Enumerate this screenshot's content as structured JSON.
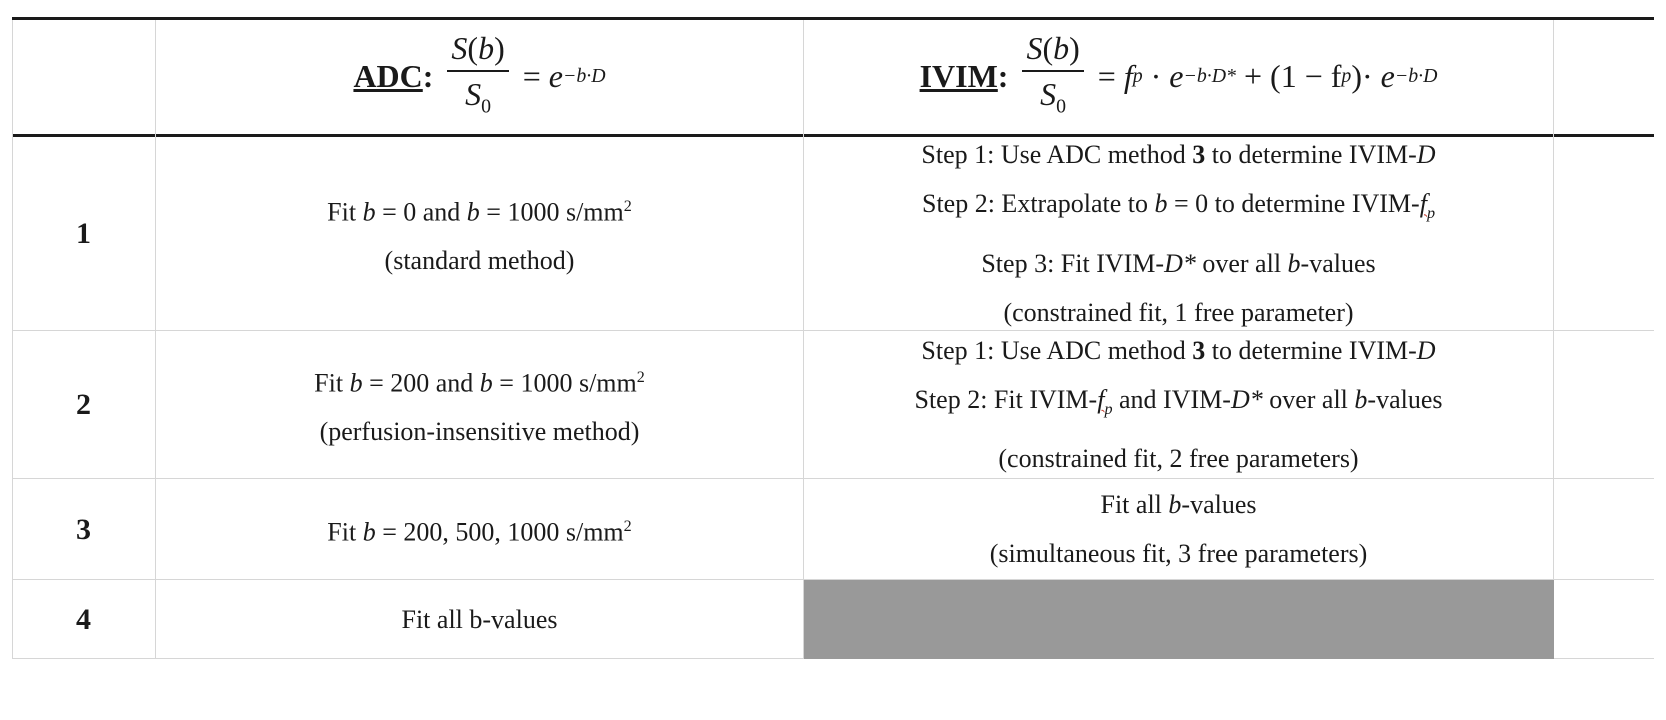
{
  "header": {
    "adc_label": "ADC",
    "ivim_label": "IVIM",
    "colon": ":",
    "frac_num": "S(b)",
    "frac_den_S": "S",
    "frac_den_sub": "0",
    "eq": "=",
    "e": "e",
    "adc_exp": "−b·D",
    "ivim_fp": "f",
    "ivim_fp_sub": "p",
    "dot": "·",
    "ivim_exp1": "−b·D*",
    "plus": "+",
    "ivim_paren": "(1 − f",
    "ivim_paren_sub": "p",
    "ivim_paren_close": ")·",
    "ivim_exp2": "−b·D"
  },
  "rows": [
    {
      "num": "1",
      "adc": {
        "a": "Fit ",
        "b1": "b",
        "c": " = 0 and ",
        "b2": "b",
        "d": " = 1000 s/mm",
        "sup": "2",
        "note": "(standard method)"
      },
      "ivim": {
        "l1a": "Step 1: Use ADC method ",
        "l1b": "3",
        "l1c": " to determine IVIM-",
        "l1d": "D",
        "l2a": "Step 2: Extrapolate to ",
        "l2b": "b",
        "l2c": " = 0 to determine IVIM-",
        "l2d": "f",
        "l2e": "p",
        "l3a": "Step 3: Fit IVIM-",
        "l3b": "D*",
        "l3c": " over all ",
        "l3d": "b",
        "l3e": "-values",
        "l4": "(constrained fit, 1 free parameter)"
      }
    },
    {
      "num": "2",
      "adc": {
        "a": "Fit ",
        "b1": "b",
        "c": " = 200 and ",
        "b2": "b",
        "d": " = 1000 s/mm",
        "sup": "2",
        "note": "(perfusion-insensitive method)"
      },
      "ivim": {
        "l1a": "Step 1: Use ADC method ",
        "l1b": "3",
        "l1c": " to determine IVIM-",
        "l1d": "D",
        "l2a": "Step 2: Fit IVIM-",
        "l2b": "f",
        "l2c": "p",
        "l2d": " and IVIM-",
        "l2e": "D*",
        "l2f": " over all ",
        "l2g": "b",
        "l2h": "-values",
        "l3": "(constrained fit, 2 free parameters)"
      }
    },
    {
      "num": "3",
      "adc": {
        "a": "Fit ",
        "b1": "b",
        "c": " = 200, 500, 1000 s/mm",
        "sup": "2"
      },
      "ivim": {
        "l1a": "Fit all ",
        "l1b": "b",
        "l1c": "-values",
        "l2": "(simultaneous fit, 3 free parameters)"
      }
    },
    {
      "num": "4",
      "adc": {
        "a": "Fit all b-values"
      },
      "ivim_shaded": true
    }
  ]
}
